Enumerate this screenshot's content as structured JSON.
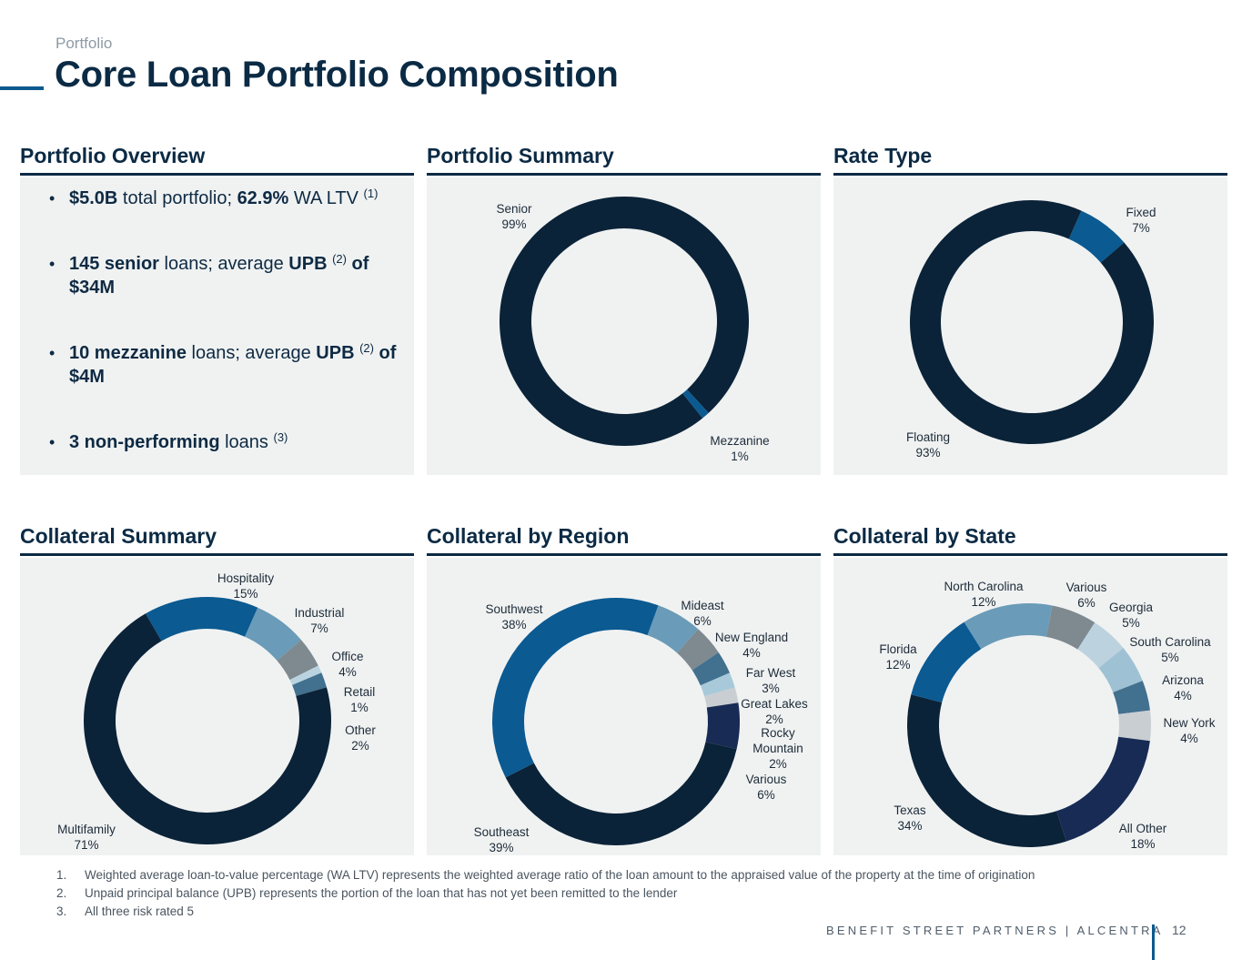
{
  "header": {
    "kicker": "Portfolio",
    "title": "Core Loan Portfolio Composition"
  },
  "sections": {
    "overview": "Portfolio Overview",
    "summary": "Portfolio Summary",
    "rate_type": "Rate Type",
    "collateral": "Collateral Summary",
    "region": "Collateral by Region",
    "state": "Collateral by State"
  },
  "overview": {
    "b1": {
      "p1": "$5.0B",
      "p2": " total portfolio; ",
      "p3": "62.9%",
      "p4": " WA LTV ",
      "sup": "(1)"
    },
    "b2": {
      "p1": "145 senior",
      "p2": " loans; average ",
      "p3": "UPB",
      "sup": "(2)",
      "p4": " of $34M"
    },
    "b3": {
      "p1": "10 mezzanine",
      "p2": " loans; average ",
      "p3": "UPB",
      "sup": "(2)",
      "p4": " of $4M"
    },
    "b4": {
      "p1": "3 non-performing",
      "p2": " loans ",
      "sup": "(3)"
    }
  },
  "chart_data": [
    {
      "type": "pie",
      "title": "Portfolio Summary",
      "categories": [
        "Senior",
        "Mezzanine"
      ],
      "values": [
        99,
        1
      ],
      "labels": [
        "99%",
        "1%"
      ],
      "colors": [
        "#0b2338",
        "#0b5a92"
      ]
    },
    {
      "type": "pie",
      "title": "Rate Type",
      "categories": [
        "Fixed",
        "Floating"
      ],
      "values": [
        7,
        93
      ],
      "labels": [
        "7%",
        "93%"
      ],
      "colors": [
        "#0b5a92",
        "#0b2338"
      ]
    },
    {
      "type": "pie",
      "title": "Collateral Summary",
      "categories": [
        "Hospitality",
        "Industrial",
        "Office",
        "Retail",
        "Other",
        "Multifamily"
      ],
      "values": [
        15,
        7,
        4,
        1,
        2,
        71
      ],
      "labels": [
        "15%",
        "7%",
        "4%",
        "1%",
        "2%",
        "71%"
      ],
      "colors": [
        "#0b5a92",
        "#6a9bb8",
        "#7e8a90",
        "#b9d3e0",
        "#42708f",
        "#0b2338"
      ]
    },
    {
      "type": "pie",
      "title": "Collateral by Region",
      "categories": [
        "Mideast",
        "New England",
        "Far West",
        "Great Lakes",
        "Rocky Mountain",
        "Various",
        "Southeast",
        "Southwest"
      ],
      "values": [
        6,
        4,
        3,
        2,
        2,
        6,
        39,
        38
      ],
      "labels": [
        "6%",
        "4%",
        "3%",
        "2%",
        "2%",
        "6%",
        "39%",
        "38%"
      ],
      "colors": [
        "#6a9bb8",
        "#7e8a90",
        "#42708f",
        "#a8c9da",
        "#c9ced2",
        "#172b55",
        "#0b2338",
        "#0b5a92"
      ]
    },
    {
      "type": "pie",
      "title": "Collateral by State",
      "categories": [
        "Various",
        "Georgia",
        "South Carolina",
        "Arizona",
        "New York",
        "All Other",
        "Texas",
        "Florida",
        "North Carolina"
      ],
      "values": [
        6,
        5,
        5,
        4,
        4,
        18,
        34,
        12,
        12
      ],
      "labels": [
        "6%",
        "5%",
        "5%",
        "4%",
        "4%",
        "18%",
        "34%",
        "12%",
        "12%"
      ],
      "colors": [
        "#7e8a90",
        "#bcd3df",
        "#9fc1d4",
        "#42708f",
        "#c9ced2",
        "#172b55",
        "#0b2338",
        "#0b5a92",
        "#6a9bb8"
      ]
    }
  ],
  "footnotes": [
    {
      "num": "1.",
      "text": "Weighted average loan-to-value percentage (WA LTV) represents the weighted average ratio of the loan amount to the appraised value of the property at the time of origination"
    },
    {
      "num": "2.",
      "text": "Unpaid principal balance (UPB) represents the portion of the loan that has not yet been remitted to the lender"
    },
    {
      "num": "3.",
      "text": "All three risk rated 5"
    }
  ],
  "footer": {
    "brand": "BENEFIT STREET PARTNERS | ALCENTRA",
    "page": "12"
  }
}
